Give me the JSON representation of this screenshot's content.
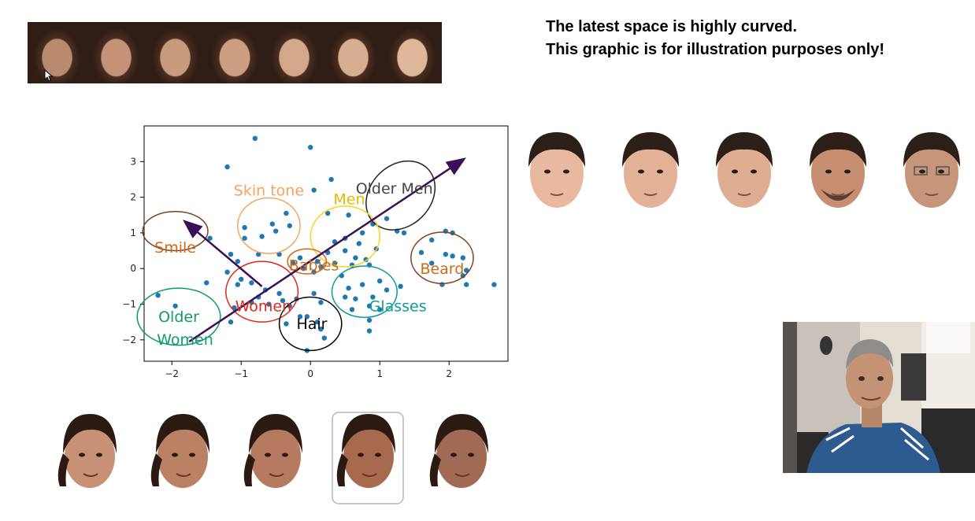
{
  "slide": {
    "note_line1": "The latest space is highly curved.",
    "note_line2": "This graphic is for illustration purposes only!"
  },
  "chart_data": {
    "type": "scatter",
    "xlim": [
      -2.4,
      2.85
    ],
    "ylim": [
      -2.6,
      4.0
    ],
    "x_ticks": [
      "−2",
      "−1",
      "0",
      "1",
      "2"
    ],
    "y_ticks": [
      "−2",
      "−1",
      "0",
      "1",
      "2",
      "3"
    ],
    "series": [
      {
        "color": "#1f77b4",
        "points": [
          [
            -0.8,
            3.65
          ],
          [
            0,
            3.4
          ],
          [
            -1.2,
            2.85
          ],
          [
            0.3,
            2.5
          ],
          [
            0.05,
            2.2
          ],
          [
            0.25,
            1.55
          ],
          [
            0.55,
            1.5
          ],
          [
            1.1,
            1.4
          ],
          [
            0.9,
            1.25
          ],
          [
            1.25,
            1.05
          ],
          [
            1.35,
            1.0
          ],
          [
            0.75,
            1.0
          ],
          [
            0.5,
            0.85
          ],
          [
            0.35,
            0.75
          ],
          [
            0.7,
            0.7
          ],
          [
            0.95,
            0.55
          ],
          [
            0.25,
            0.45
          ],
          [
            0.5,
            0.5
          ],
          [
            0.65,
            0.3
          ],
          [
            0.8,
            0.25
          ],
          [
            0.1,
            0.2
          ],
          [
            0.35,
            0.15
          ],
          [
            0.15,
            0.05
          ],
          [
            -0.15,
            0.3
          ],
          [
            -0.1,
            0.0
          ],
          [
            0.05,
            -0.1
          ],
          [
            0.45,
            -0.2
          ],
          [
            0.6,
            0.1
          ],
          [
            0.85,
            0.1
          ],
          [
            -0.35,
            1.55
          ],
          [
            -0.3,
            1.2
          ],
          [
            -0.55,
            1.25
          ],
          [
            -0.5,
            1.05
          ],
          [
            -0.7,
            0.9
          ],
          [
            -0.95,
            0.85
          ],
          [
            -0.95,
            1.15
          ],
          [
            -0.75,
            0.4
          ],
          [
            -0.45,
            0.4
          ],
          [
            -1.15,
            0.4
          ],
          [
            -1.05,
            0.2
          ],
          [
            -1.45,
            0.85
          ],
          [
            -1.2,
            -0.1
          ],
          [
            -1.0,
            -0.3
          ],
          [
            -0.85,
            -0.4
          ],
          [
            -1.05,
            -0.45
          ],
          [
            -1.5,
            -0.4
          ],
          [
            -0.65,
            -0.6
          ],
          [
            -0.45,
            -0.7
          ],
          [
            -0.75,
            -0.8
          ],
          [
            -0.85,
            -0.95
          ],
          [
            -1.1,
            -1.1
          ],
          [
            -0.6,
            -1.0
          ],
          [
            -0.4,
            -0.9
          ],
          [
            -0.2,
            -0.85
          ],
          [
            -0.3,
            -1.05
          ],
          [
            -0.15,
            -1.35
          ],
          [
            -0.35,
            -1.55
          ],
          [
            -0.05,
            -1.35
          ],
          [
            0.05,
            -0.7
          ],
          [
            0.1,
            -1.5
          ],
          [
            0.15,
            -1.7
          ],
          [
            0.2,
            -1.95
          ],
          [
            -0.05,
            -2.3
          ],
          [
            0.55,
            -0.55
          ],
          [
            0.75,
            -0.45
          ],
          [
            0.5,
            -0.8
          ],
          [
            0.65,
            -0.85
          ],
          [
            0.9,
            -0.8
          ],
          [
            0.85,
            -1.05
          ],
          [
            1.0,
            -1.15
          ],
          [
            0.6,
            -1.15
          ],
          [
            0.85,
            -1.45
          ],
          [
            0.85,
            -1.75
          ],
          [
            1.1,
            -0.6
          ],
          [
            1.3,
            -0.5
          ],
          [
            1.0,
            -0.35
          ],
          [
            1.75,
            0.8
          ],
          [
            1.95,
            1.05
          ],
          [
            2.05,
            1.0
          ],
          [
            1.6,
            0.45
          ],
          [
            1.95,
            0.4
          ],
          [
            2.05,
            0.35
          ],
          [
            2.2,
            0.3
          ],
          [
            1.75,
            0.15
          ],
          [
            2.25,
            -0.05
          ],
          [
            2.2,
            -0.2
          ],
          [
            1.9,
            -0.45
          ],
          [
            2.25,
            -0.45
          ],
          [
            2.65,
            -0.45
          ],
          [
            -2.2,
            -0.75
          ],
          [
            -1.95,
            -1.05
          ],
          [
            -1.15,
            -1.5
          ],
          [
            0.15,
            -0.95
          ],
          [
            -0.25,
            0.15
          ]
        ]
      }
    ],
    "annotations": [
      {
        "label": "Older Men",
        "cx": 1.3,
        "cy": 2.05,
        "rx": 0.55,
        "ry": 0.85,
        "angle": 45,
        "ellipse": "#222222",
        "text": "#444444",
        "tx": 1.21,
        "ty": 2.1
      },
      {
        "label": "Skin tone",
        "cx": -0.6,
        "cy": 1.2,
        "rx": 0.45,
        "ry": 0.78,
        "angle": 0,
        "ellipse": "#f4a460",
        "text": "#f4a460",
        "tx": -0.6,
        "ty": 2.05
      },
      {
        "label": "Men",
        "cx": 0.5,
        "cy": 0.9,
        "rx": 0.5,
        "ry": 0.85,
        "angle": 0,
        "ellipse": "#ffd21f",
        "text": "#e8b800",
        "tx": 0.56,
        "ty": 1.8
      },
      {
        "label": "Smile",
        "cx": -1.95,
        "cy": 1.05,
        "rx": 0.47,
        "ry": 0.55,
        "angle": 0,
        "ellipse": "#7b3f1c",
        "text": "#cc6a18",
        "tx": -1.95,
        "ty": 0.45
      },
      {
        "label": "Babies",
        "cx": -0.05,
        "cy": 0.2,
        "rx": 0.28,
        "ry": 0.35,
        "angle": 0,
        "ellipse": "#cc6a18",
        "text": "#cc6a18",
        "tx": 0.05,
        "ty": -0.05
      },
      {
        "label": "Beard",
        "cx": 1.9,
        "cy": 0.3,
        "rx": 0.45,
        "ry": 0.72,
        "angle": 0,
        "ellipse": "#7b3f1c",
        "text": "#cc6a18",
        "tx": 1.9,
        "ty": -0.15
      },
      {
        "label": "Women",
        "cx": -0.7,
        "cy": -0.65,
        "rx": 0.52,
        "ry": 0.85,
        "angle": 0,
        "ellipse": "#dd2a1b",
        "text": "#dd2a1b",
        "tx": -0.68,
        "ty": -1.2
      },
      {
        "label": "Glasses",
        "cx": 0.78,
        "cy": -0.65,
        "rx": 0.47,
        "ry": 0.72,
        "angle": 0,
        "ellipse": "#119a9a",
        "text": "#119a9a",
        "tx": 1.26,
        "ty": -1.2
      },
      {
        "label": "Hair",
        "cx": 0,
        "cy": -1.55,
        "rx": 0.45,
        "ry": 0.75,
        "angle": 0,
        "ellipse": "#000000",
        "text": "#000000",
        "tx": 0.02,
        "ty": -1.7
      },
      {
        "label": "Older",
        "cx": -1.9,
        "cy": -1.35,
        "rx": 0.6,
        "ry": 0.8,
        "angle": 0,
        "ellipse": "#119a6a",
        "text": "#119a6a",
        "tx": -1.9,
        "ty": -1.5,
        "second_line": "Women"
      }
    ],
    "arrows": [
      {
        "from": [
          -1.75,
          -2.05
        ],
        "to": [
          2.2,
          3.05
        ],
        "color": "#3b0f55"
      },
      {
        "from": [
          -0.7,
          -0.5
        ],
        "to": [
          -1.8,
          1.3
        ],
        "color": "#3b0f55"
      }
    ]
  },
  "colors": {
    "hair_dark": "#2b1a12",
    "skin_light": "#dca98a",
    "skin_mid": "#c89272",
    "skin_dark": "#a86a4a",
    "woman_skin": "#b27357"
  }
}
